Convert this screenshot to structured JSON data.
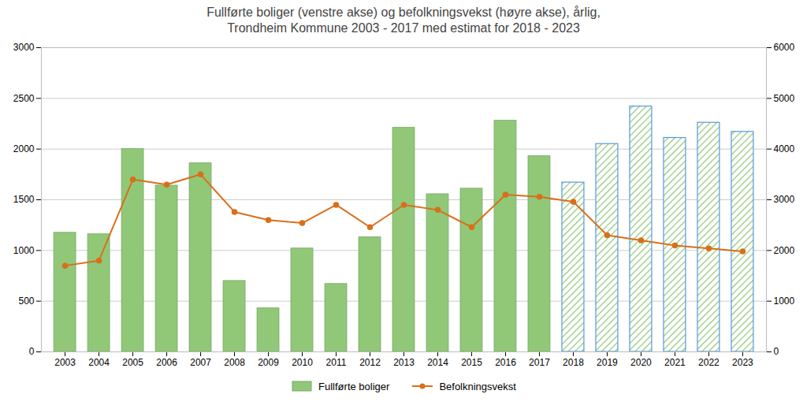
{
  "chart_data": {
    "type": "bar",
    "title": "Fullførte boliger (venstre akse) og befolkningsvekst (høyre akse), årlig,\nTrondheim Kommune 2003 - 2017 med estimat for 2018 - 2023",
    "x": [
      2003,
      2004,
      2005,
      2006,
      2007,
      2008,
      2009,
      2010,
      2011,
      2012,
      2013,
      2014,
      2015,
      2016,
      2017,
      2018,
      2019,
      2020,
      2021,
      2022,
      2023
    ],
    "xlim": [
      2002.3,
      2023.7
    ],
    "xticks": [
      2003,
      2004,
      2005,
      2006,
      2007,
      2008,
      2009,
      2010,
      2011,
      2012,
      2013,
      2014,
      2015,
      2016,
      2017,
      2018,
      2019,
      2020,
      2021,
      2022,
      2023
    ],
    "ylim": [
      0,
      3000
    ],
    "yticks": [
      0,
      500,
      1000,
      1500,
      2000,
      2500,
      3000
    ],
    "y2lim": [
      0,
      6000
    ],
    "y2ticks": [
      0,
      1000,
      2000,
      3000,
      4000,
      5000,
      6000
    ],
    "grid": true,
    "legend": "bottom",
    "series": [
      {
        "name": "Fullførte boliger",
        "type": "bar",
        "color": "#90C878",
        "colors": [
          "#90C878",
          "#90C878",
          "#90C878",
          "#90C878",
          "#90C878",
          "#90C878",
          "#90C878",
          "#90C878",
          "#90C878",
          "#90C878",
          "#90C878",
          "#90C878",
          "#90C878",
          "#90C878",
          "#90C878",
          "#5599dd",
          "#5599dd",
          "#5599dd",
          "#5599dd",
          "#5599dd",
          "#5599dd"
        ],
        "values": [
          1175,
          1160,
          2000,
          1640,
          1860,
          700,
          430,
          1020,
          670,
          1130,
          2210,
          1555,
          1610,
          2280,
          1930,
          1670,
          2050,
          2420,
          2110,
          2260,
          2170
        ]
      },
      {
        "name": "Befolkningsvekst",
        "type": "line",
        "axis": "y2",
        "color": "#D96F1A",
        "marker": "circle",
        "values": [
          1700,
          1800,
          3400,
          3300,
          3500,
          2760,
          2600,
          2540,
          2900,
          2460,
          2900,
          2800,
          2460,
          3100,
          3060,
          2960,
          2300,
          2200,
          2100,
          2040,
          1980
        ]
      }
    ]
  }
}
